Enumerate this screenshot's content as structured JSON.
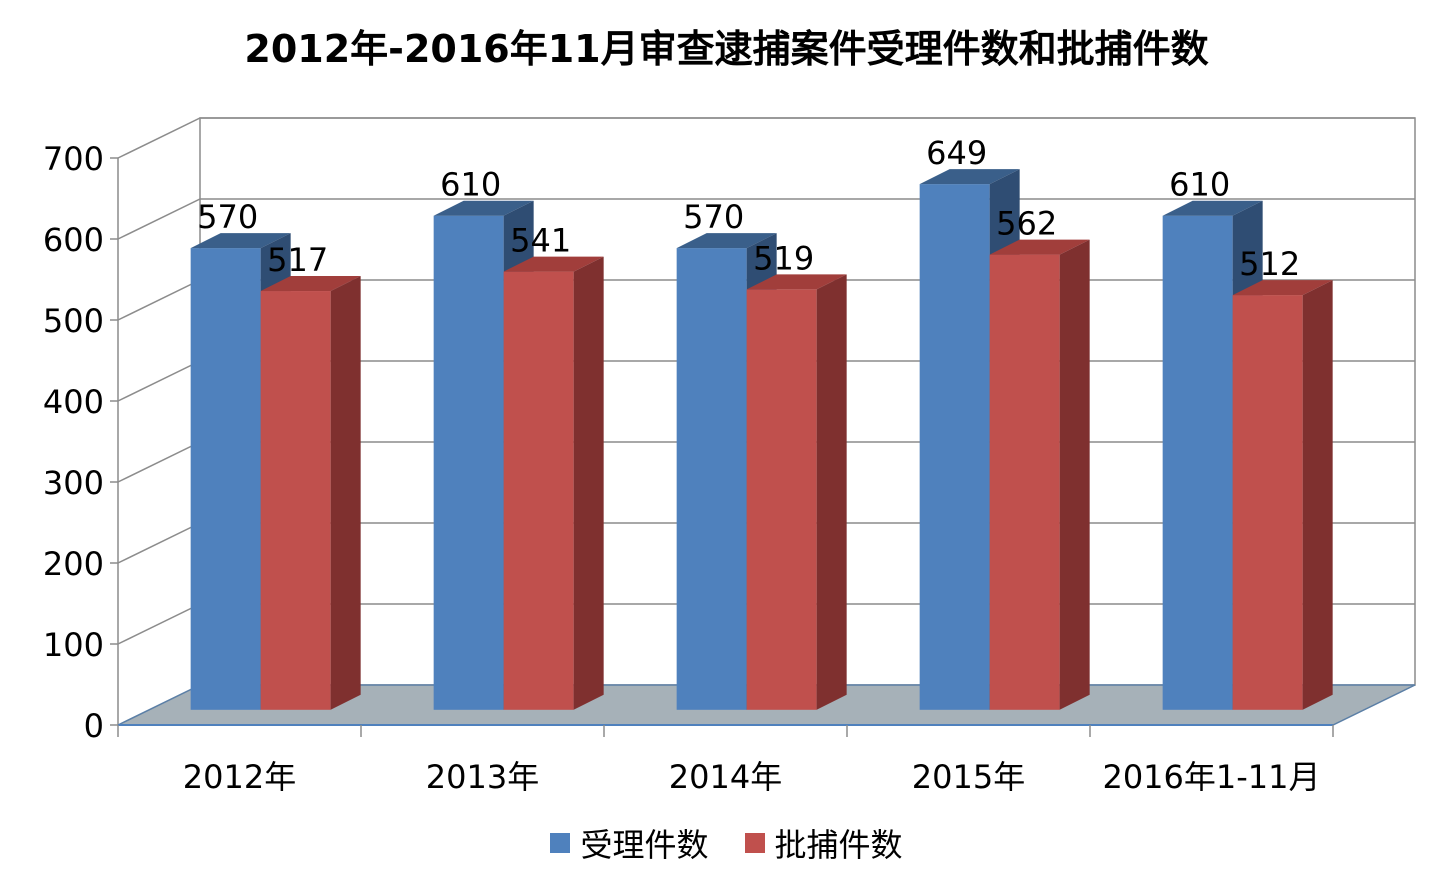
{
  "chart_data": {
    "type": "bar",
    "title": "2012年-2016年11月审查逮捕案件受理件数和批捕件数",
    "categories": [
      "2012年",
      "2013年",
      "2014年",
      "2015年",
      "2016年1-11月"
    ],
    "series": [
      {
        "name": "受理件数",
        "values": [
          570,
          610,
          570,
          649,
          610
        ],
        "color": "#4F81BD",
        "top_color": "#3A5F8A",
        "side_color": "#2F4D73"
      },
      {
        "name": "批捕件数",
        "values": [
          517,
          541,
          519,
          562,
          512
        ],
        "color": "#C0504D",
        "top_color": "#A13E3B",
        "side_color": "#7F302F"
      }
    ],
    "ylim": [
      0,
      700
    ],
    "yticks": [
      "0",
      "100",
      "200",
      "300",
      "400",
      "500",
      "600",
      "700"
    ],
    "grid": true,
    "legend_position": "bottom",
    "floor_color": "#A6B1B8",
    "style": "3d-clustered-column"
  }
}
